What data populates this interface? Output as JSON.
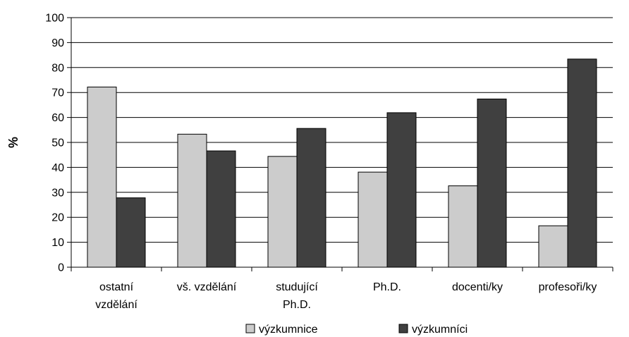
{
  "chart_data": {
    "type": "bar",
    "categories": [
      [
        "ostatní",
        "vzdělání"
      ],
      [
        "vš. vzdělání"
      ],
      [
        "studující",
        "Ph.D."
      ],
      [
        "Ph.D."
      ],
      [
        "docenti/ky"
      ],
      [
        "profesoři/ky"
      ]
    ],
    "series": [
      {
        "name": "výzkumnice",
        "color": "#cccccc",
        "values": [
          72.2,
          53.3,
          44.4,
          38.1,
          32.6,
          16.6
        ]
      },
      {
        "name": "výzkumníci",
        "color": "#404040",
        "values": [
          27.8,
          46.6,
          55.6,
          61.9,
          67.4,
          83.4
        ]
      }
    ],
    "ylabel": "%",
    "xlabel": "",
    "ylim": [
      0,
      100
    ],
    "yticks": [
      0,
      10,
      20,
      30,
      40,
      50,
      60,
      70,
      80,
      90,
      100
    ],
    "grid": true,
    "legend_position": "bottom"
  }
}
